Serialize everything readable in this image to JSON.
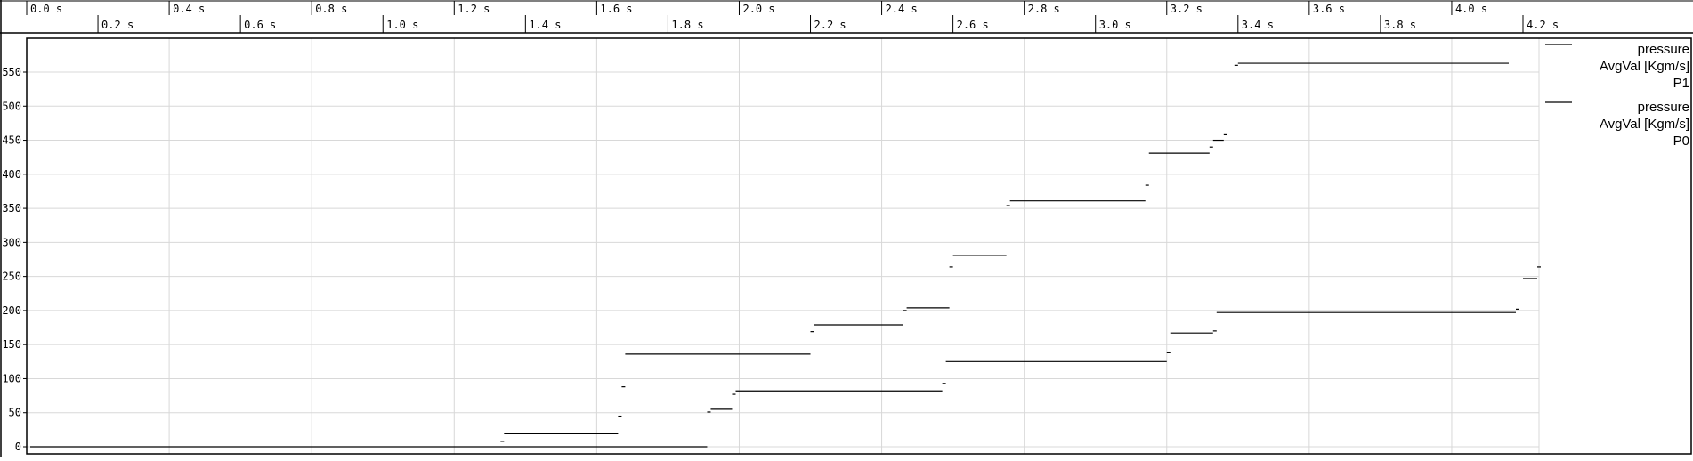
{
  "chart_data": {
    "type": "line",
    "step": true,
    "x_unit": "s",
    "xlim": [
      0.0,
      4.75
    ],
    "ylim": [
      0,
      600
    ],
    "x_ticks": [
      0.0,
      0.2,
      0.4,
      0.6,
      0.8,
      1.0,
      1.2,
      1.4,
      1.6,
      1.8,
      2.0,
      2.2,
      2.4,
      2.6,
      2.8,
      3.0,
      3.2,
      3.4,
      3.6,
      3.8,
      4.0,
      4.2
    ],
    "x_tick_labels": [
      "0.0 s",
      "0.2 s",
      "0.4 s",
      "0.6 s",
      "0.8 s",
      "1.0 s",
      "1.2 s",
      "1.4 s",
      "1.6 s",
      "1.8 s",
      "2.0 s",
      "2.2 s",
      "2.4 s",
      "2.6 s",
      "2.8 s",
      "3.0 s",
      "3.2 s",
      "3.4 s",
      "3.6 s",
      "3.8 s",
      "4.0 s",
      "4.2 s"
    ],
    "y_ticks": [
      0,
      50,
      100,
      150,
      200,
      250,
      300,
      350,
      400,
      450,
      500,
      550
    ],
    "y_tick_labels": [
      "0",
      "50",
      "100",
      "150",
      "200",
      "250",
      "300",
      "350",
      "400",
      "450",
      "500",
      "550"
    ],
    "grid": true,
    "legend_position": "right",
    "series": [
      {
        "name": "pressure AvgVal [Kgm/s] P1",
        "legend_lines": [
          "pressure",
          "AvgVal [Kgm/s]",
          "P1"
        ],
        "color": "#000000",
        "segments": [
          [
            0.01,
            1.91,
            0
          ],
          [
            1.33,
            1.34,
            8
          ],
          [
            1.34,
            1.66,
            19
          ],
          [
            1.66,
            1.67,
            45
          ],
          [
            1.67,
            1.68,
            88
          ],
          [
            1.68,
            2.2,
            136
          ],
          [
            2.2,
            2.21,
            169
          ],
          [
            2.21,
            2.46,
            179
          ],
          [
            2.46,
            2.47,
            200
          ],
          [
            2.47,
            2.59,
            204
          ],
          [
            2.59,
            2.6,
            264
          ],
          [
            2.6,
            2.75,
            281
          ],
          [
            2.75,
            2.76,
            354
          ],
          [
            2.76,
            3.14,
            361
          ],
          [
            3.14,
            3.15,
            384
          ],
          [
            3.15,
            3.32,
            431
          ],
          [
            3.32,
            3.33,
            440
          ],
          [
            3.33,
            3.36,
            450
          ],
          [
            3.36,
            3.37,
            458
          ],
          [
            3.39,
            3.4,
            560
          ],
          [
            3.4,
            4.16,
            563
          ]
        ]
      },
      {
        "name": "pressure AvgVal [Kgm/s] P0",
        "legend_lines": [
          "pressure",
          "AvgVal [Kgm/s]",
          "P0"
        ],
        "color": "#000000",
        "segments": [
          [
            1.91,
            1.92,
            51
          ],
          [
            1.92,
            1.98,
            55
          ],
          [
            1.98,
            1.99,
            77
          ],
          [
            1.99,
            2.57,
            82
          ],
          [
            2.57,
            2.58,
            93
          ],
          [
            2.58,
            3.2,
            125
          ],
          [
            3.2,
            3.21,
            138
          ],
          [
            3.21,
            3.33,
            167
          ],
          [
            3.33,
            3.34,
            170
          ],
          [
            3.34,
            4.18,
            197
          ],
          [
            4.18,
            4.19,
            202
          ],
          [
            4.2,
            4.24,
            247
          ],
          [
            4.24,
            4.25,
            264
          ]
        ]
      }
    ]
  }
}
